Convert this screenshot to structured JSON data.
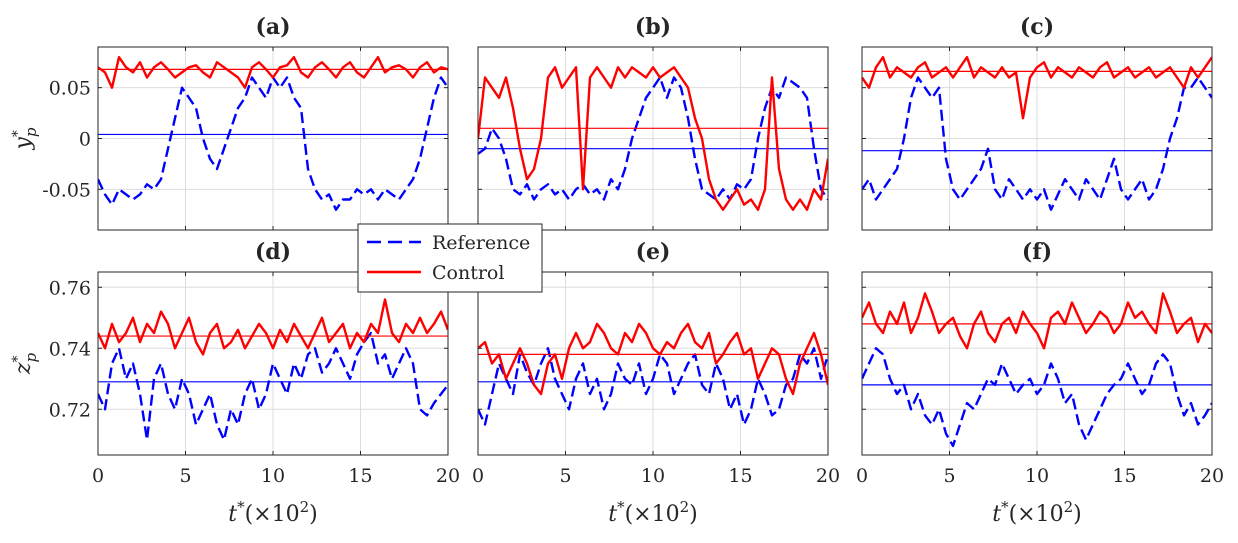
{
  "colors": {
    "reference": "#0000ff",
    "control": "#ff0000",
    "grid": "#dddddd",
    "axis": "#262626"
  },
  "legend": {
    "placement": "center",
    "entries": [
      {
        "label": "Reference",
        "style": "dashed",
        "color": "#0000ff"
      },
      {
        "label": "Control",
        "style": "solid",
        "color": "#ff0000"
      }
    ]
  },
  "chart_data": [
    {
      "panel": "a",
      "type": "line",
      "title": "(a)",
      "ylabel": "y*p",
      "xlim": [
        0,
        20
      ],
      "ylim": [
        -0.09,
        0.09
      ],
      "yticks": [
        -0.05,
        0,
        0.05
      ],
      "ytick_labels": [
        "-0.05",
        "0",
        "0.05"
      ],
      "xticks": [
        0,
        5,
        10,
        15,
        20
      ],
      "xtick_labels": [],
      "grid": true,
      "series": [
        {
          "name": "Reference",
          "mean": 0.004,
          "values": [
            -0.04,
            -0.055,
            -0.065,
            -0.05,
            -0.055,
            -0.06,
            -0.055,
            -0.045,
            -0.05,
            -0.04,
            -0.01,
            0.02,
            0.05,
            0.04,
            0.03,
            0.0,
            -0.02,
            -0.03,
            -0.01,
            0.01,
            0.03,
            0.04,
            0.06,
            0.05,
            0.04,
            0.06,
            0.05,
            0.06,
            0.04,
            0.03,
            -0.03,
            -0.05,
            -0.06,
            -0.055,
            -0.07,
            -0.06,
            -0.06,
            -0.05,
            -0.055,
            -0.05,
            -0.06,
            -0.05,
            -0.055,
            -0.06,
            -0.05,
            -0.04,
            -0.02,
            0.01,
            0.04,
            0.06,
            0.05
          ]
        },
        {
          "name": "Control",
          "mean": 0.068,
          "values": [
            0.07,
            0.065,
            0.05,
            0.08,
            0.07,
            0.065,
            0.075,
            0.06,
            0.07,
            0.075,
            0.068,
            0.06,
            0.065,
            0.07,
            0.072,
            0.065,
            0.06,
            0.075,
            0.07,
            0.065,
            0.06,
            0.05,
            0.07,
            0.075,
            0.068,
            0.06,
            0.07,
            0.072,
            0.08,
            0.065,
            0.06,
            0.07,
            0.075,
            0.068,
            0.06,
            0.07,
            0.075,
            0.065,
            0.06,
            0.07,
            0.08,
            0.065,
            0.07,
            0.072,
            0.068,
            0.06,
            0.07,
            0.075,
            0.065,
            0.07,
            0.068
          ]
        }
      ]
    },
    {
      "panel": "b",
      "type": "line",
      "title": "(b)",
      "ylabel": "",
      "xlim": [
        0,
        20
      ],
      "ylim": [
        -0.09,
        0.09
      ],
      "yticks": [
        -0.05,
        0,
        0.05
      ],
      "ytick_labels": [],
      "xticks": [
        0,
        5,
        10,
        15,
        20
      ],
      "xtick_labels": [],
      "grid": true,
      "series": [
        {
          "name": "Reference",
          "mean": -0.01,
          "values": [
            -0.015,
            -0.01,
            0.01,
            0.0,
            -0.02,
            -0.05,
            -0.055,
            -0.045,
            -0.06,
            -0.05,
            -0.045,
            -0.055,
            -0.05,
            -0.06,
            -0.05,
            -0.045,
            -0.055,
            -0.05,
            -0.06,
            -0.04,
            -0.05,
            -0.03,
            0.0,
            0.02,
            0.04,
            0.05,
            0.06,
            0.04,
            0.06,
            0.05,
            0.02,
            -0.02,
            -0.05,
            -0.055,
            -0.06,
            -0.05,
            -0.06,
            -0.045,
            -0.05,
            -0.04,
            0.0,
            0.03,
            0.05,
            0.04,
            0.06,
            0.055,
            0.05,
            0.04,
            -0.01,
            -0.05,
            -0.06
          ]
        },
        {
          "name": "Control",
          "mean": 0.01,
          "values": [
            0.0,
            0.06,
            0.05,
            0.04,
            0.06,
            0.03,
            -0.01,
            -0.04,
            -0.03,
            0.0,
            0.06,
            0.07,
            0.05,
            0.06,
            0.07,
            -0.05,
            0.06,
            0.07,
            0.06,
            0.05,
            0.07,
            0.06,
            0.07,
            0.065,
            0.06,
            0.07,
            0.06,
            0.065,
            0.07,
            0.06,
            0.05,
            0.02,
            0.0,
            -0.04,
            -0.06,
            -0.07,
            -0.06,
            -0.05,
            -0.065,
            -0.06,
            -0.07,
            -0.05,
            0.06,
            -0.03,
            -0.06,
            -0.07,
            -0.06,
            -0.07,
            -0.05,
            -0.06,
            -0.02
          ]
        }
      ]
    },
    {
      "panel": "c",
      "type": "line",
      "title": "(c)",
      "ylabel": "",
      "xlim": [
        0,
        20
      ],
      "ylim": [
        -0.09,
        0.09
      ],
      "yticks": [
        -0.05,
        0,
        0.05
      ],
      "ytick_labels": [],
      "xticks": [
        0,
        5,
        10,
        15,
        20
      ],
      "xtick_labels": [],
      "grid": true,
      "series": [
        {
          "name": "Reference",
          "mean": -0.012,
          "values": [
            -0.05,
            -0.04,
            -0.06,
            -0.05,
            -0.04,
            -0.03,
            0.0,
            0.04,
            0.06,
            0.05,
            0.04,
            0.05,
            -0.02,
            -0.05,
            -0.06,
            -0.05,
            -0.04,
            -0.03,
            -0.01,
            -0.05,
            -0.06,
            -0.04,
            -0.05,
            -0.06,
            -0.05,
            -0.06,
            -0.05,
            -0.07,
            -0.055,
            -0.04,
            -0.05,
            -0.06,
            -0.04,
            -0.05,
            -0.06,
            -0.04,
            -0.02,
            -0.05,
            -0.06,
            -0.05,
            -0.04,
            -0.06,
            -0.05,
            -0.03,
            0.0,
            0.02,
            0.05,
            0.05,
            0.06,
            0.05,
            0.04
          ]
        },
        {
          "name": "Control",
          "mean": 0.066,
          "values": [
            0.06,
            0.05,
            0.07,
            0.08,
            0.06,
            0.07,
            0.065,
            0.06,
            0.07,
            0.075,
            0.06,
            0.065,
            0.07,
            0.06,
            0.07,
            0.08,
            0.06,
            0.07,
            0.065,
            0.06,
            0.07,
            0.06,
            0.065,
            0.02,
            0.06,
            0.07,
            0.075,
            0.06,
            0.07,
            0.065,
            0.06,
            0.07,
            0.065,
            0.06,
            0.07,
            0.075,
            0.06,
            0.065,
            0.07,
            0.06,
            0.065,
            0.07,
            0.06,
            0.065,
            0.07,
            0.06,
            0.05,
            0.07,
            0.06,
            0.07,
            0.08
          ]
        }
      ]
    },
    {
      "panel": "d",
      "type": "line",
      "title": "(d)",
      "ylabel": "z*p",
      "xlabel": "t*(×10²)",
      "xlim": [
        0,
        20
      ],
      "ylim": [
        0.705,
        0.765
      ],
      "yticks": [
        0.72,
        0.74,
        0.76
      ],
      "ytick_labels": [
        "0.72",
        "0.74",
        "0.76"
      ],
      "xticks": [
        0,
        5,
        10,
        15,
        20
      ],
      "xtick_labels": [
        "0",
        "5",
        "10",
        "15",
        "20"
      ],
      "grid": true,
      "series": [
        {
          "name": "Reference",
          "mean": 0.729,
          "values": [
            0.725,
            0.72,
            0.735,
            0.74,
            0.73,
            0.735,
            0.725,
            0.71,
            0.73,
            0.735,
            0.725,
            0.72,
            0.73,
            0.725,
            0.715,
            0.72,
            0.725,
            0.715,
            0.71,
            0.72,
            0.715,
            0.725,
            0.73,
            0.72,
            0.725,
            0.735,
            0.73,
            0.725,
            0.735,
            0.73,
            0.738,
            0.74,
            0.732,
            0.735,
            0.74,
            0.735,
            0.73,
            0.738,
            0.742,
            0.745,
            0.735,
            0.738,
            0.73,
            0.735,
            0.74,
            0.735,
            0.72,
            0.718,
            0.722,
            0.725,
            0.728
          ]
        },
        {
          "name": "Control",
          "mean": 0.744,
          "values": [
            0.745,
            0.74,
            0.748,
            0.742,
            0.745,
            0.75,
            0.742,
            0.748,
            0.745,
            0.752,
            0.748,
            0.74,
            0.745,
            0.75,
            0.742,
            0.738,
            0.745,
            0.748,
            0.74,
            0.742,
            0.746,
            0.74,
            0.744,
            0.748,
            0.745,
            0.74,
            0.746,
            0.742,
            0.748,
            0.744,
            0.74,
            0.745,
            0.75,
            0.742,
            0.745,
            0.748,
            0.74,
            0.745,
            0.742,
            0.748,
            0.745,
            0.756,
            0.745,
            0.742,
            0.748,
            0.745,
            0.75,
            0.745,
            0.748,
            0.752,
            0.746
          ]
        }
      ]
    },
    {
      "panel": "e",
      "type": "line",
      "title": "(e)",
      "ylabel": "",
      "xlabel": "t*(×10²)",
      "xlim": [
        0,
        20
      ],
      "ylim": [
        0.705,
        0.765
      ],
      "yticks": [
        0.72,
        0.74,
        0.76
      ],
      "ytick_labels": [],
      "xticks": [
        0,
        5,
        10,
        15,
        20
      ],
      "xtick_labels": [
        "0",
        "5",
        "10",
        "15",
        "20"
      ],
      "grid": true,
      "series": [
        {
          "name": "Reference",
          "mean": 0.729,
          "values": [
            0.72,
            0.715,
            0.725,
            0.735,
            0.73,
            0.725,
            0.738,
            0.732,
            0.728,
            0.735,
            0.74,
            0.73,
            0.725,
            0.72,
            0.73,
            0.735,
            0.725,
            0.73,
            0.72,
            0.725,
            0.735,
            0.73,
            0.728,
            0.735,
            0.725,
            0.73,
            0.738,
            0.735,
            0.725,
            0.73,
            0.735,
            0.738,
            0.728,
            0.725,
            0.735,
            0.73,
            0.72,
            0.725,
            0.715,
            0.72,
            0.73,
            0.725,
            0.718,
            0.72,
            0.728,
            0.73,
            0.738,
            0.735,
            0.74,
            0.73,
            0.738
          ]
        },
        {
          "name": "Control",
          "mean": 0.738,
          "values": [
            0.74,
            0.742,
            0.735,
            0.738,
            0.73,
            0.735,
            0.74,
            0.735,
            0.728,
            0.725,
            0.735,
            0.738,
            0.73,
            0.74,
            0.745,
            0.74,
            0.742,
            0.748,
            0.745,
            0.74,
            0.738,
            0.745,
            0.742,
            0.748,
            0.745,
            0.74,
            0.738,
            0.742,
            0.74,
            0.745,
            0.748,
            0.742,
            0.74,
            0.745,
            0.735,
            0.738,
            0.742,
            0.745,
            0.738,
            0.74,
            0.73,
            0.735,
            0.74,
            0.738,
            0.73,
            0.725,
            0.735,
            0.74,
            0.745,
            0.738,
            0.728
          ]
        }
      ]
    },
    {
      "panel": "f",
      "type": "line",
      "title": "(f)",
      "ylabel": "",
      "xlabel": "t*(×10²)",
      "xlim": [
        0,
        20
      ],
      "ylim": [
        0.705,
        0.765
      ],
      "yticks": [
        0.72,
        0.74,
        0.76
      ],
      "ytick_labels": [],
      "xticks": [
        0,
        5,
        10,
        15,
        20
      ],
      "xtick_labels": [
        "0",
        "5",
        "10",
        "15",
        "20"
      ],
      "grid": true,
      "series": [
        {
          "name": "Reference",
          "mean": 0.728,
          "values": [
            0.73,
            0.735,
            0.74,
            0.738,
            0.73,
            0.725,
            0.728,
            0.72,
            0.725,
            0.718,
            0.715,
            0.72,
            0.712,
            0.708,
            0.715,
            0.722,
            0.72,
            0.725,
            0.73,
            0.728,
            0.735,
            0.73,
            0.725,
            0.728,
            0.73,
            0.725,
            0.728,
            0.735,
            0.73,
            0.722,
            0.725,
            0.715,
            0.71,
            0.715,
            0.72,
            0.725,
            0.728,
            0.73,
            0.735,
            0.73,
            0.725,
            0.728,
            0.735,
            0.738,
            0.735,
            0.725,
            0.718,
            0.722,
            0.715,
            0.718,
            0.722
          ]
        },
        {
          "name": "Control",
          "mean": 0.748,
          "values": [
            0.75,
            0.755,
            0.748,
            0.745,
            0.752,
            0.748,
            0.755,
            0.745,
            0.75,
            0.758,
            0.752,
            0.745,
            0.748,
            0.75,
            0.744,
            0.74,
            0.748,
            0.752,
            0.745,
            0.742,
            0.748,
            0.75,
            0.745,
            0.752,
            0.748,
            0.745,
            0.74,
            0.75,
            0.752,
            0.748,
            0.755,
            0.75,
            0.745,
            0.748,
            0.752,
            0.75,
            0.745,
            0.748,
            0.755,
            0.75,
            0.752,
            0.748,
            0.745,
            0.758,
            0.752,
            0.745,
            0.748,
            0.75,
            0.742,
            0.748,
            0.745
          ]
        }
      ]
    }
  ]
}
